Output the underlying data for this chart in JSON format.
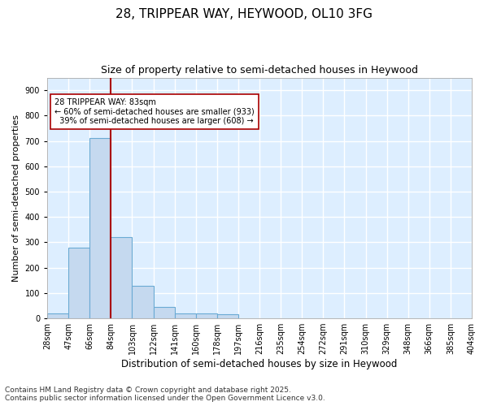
{
  "title": "28, TRIPPEAR WAY, HEYWOOD, OL10 3FG",
  "subtitle": "Size of property relative to semi-detached houses in Heywood",
  "xlabel": "Distribution of semi-detached houses by size in Heywood",
  "ylabel": "Number of semi-detached properties",
  "bin_labels": [
    "28sqm",
    "47sqm",
    "66sqm",
    "84sqm",
    "103sqm",
    "122sqm",
    "141sqm",
    "160sqm",
    "178sqm",
    "197sqm",
    "216sqm",
    "235sqm",
    "254sqm",
    "272sqm",
    "291sqm",
    "310sqm",
    "329sqm",
    "348sqm",
    "366sqm",
    "385sqm",
    "404sqm"
  ],
  "bar_values": [
    20,
    280,
    710,
    320,
    130,
    45,
    18,
    18,
    15,
    0,
    0,
    0,
    0,
    0,
    0,
    0,
    0,
    0,
    0,
    0
  ],
  "bar_color": "#c5d9ef",
  "bar_edge_color": "#6aaad4",
  "background_color": "#ddeeff",
  "grid_color": "#ffffff",
  "vline_x": 3.0,
  "vline_color": "#aa0000",
  "annotation_text": "28 TRIPPEAR WAY: 83sqm\n← 60% of semi-detached houses are smaller (933)\n  39% of semi-detached houses are larger (608) →",
  "annotation_box_facecolor": "#ffffff",
  "annotation_box_edgecolor": "#aa0000",
  "ylim": [
    0,
    950
  ],
  "yticks": [
    0,
    100,
    200,
    300,
    400,
    500,
    600,
    700,
    800,
    900
  ],
  "footnote": "Contains HM Land Registry data © Crown copyright and database right 2025.\nContains public sector information licensed under the Open Government Licence v3.0.",
  "title_fontsize": 11,
  "subtitle_fontsize": 9,
  "xlabel_fontsize": 8.5,
  "ylabel_fontsize": 8,
  "tick_fontsize": 7,
  "annotation_fontsize": 7,
  "footnote_fontsize": 6.5
}
